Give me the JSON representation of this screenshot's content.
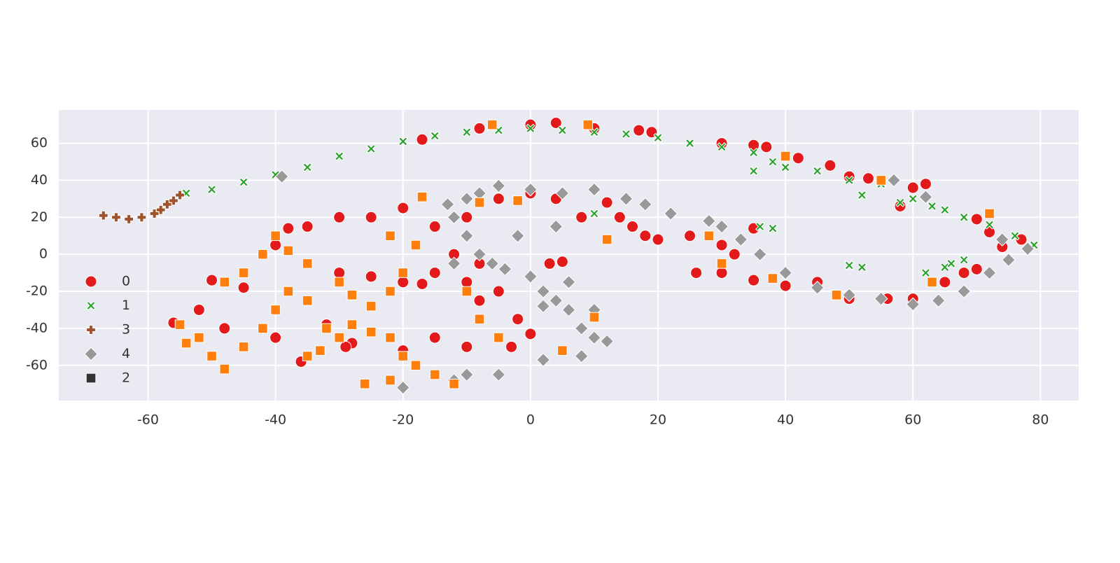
{
  "chart_data": {
    "type": "scatter",
    "xlim": [
      -74,
      86
    ],
    "ylim": [
      -79,
      78
    ],
    "xticks": [
      -60,
      -40,
      -20,
      0,
      20,
      40,
      60,
      80
    ],
    "yticks": [
      -60,
      -40,
      -20,
      0,
      20,
      40,
      60
    ],
    "grid": true,
    "legend": "center left",
    "series": [
      {
        "name": "0",
        "color": "#e31a1c",
        "marker": "circle",
        "x": [
          -17,
          -8,
          0,
          4,
          10,
          17,
          19,
          30,
          35,
          37,
          42,
          47,
          50,
          53,
          58,
          60,
          62,
          70,
          72,
          74,
          77,
          70,
          68,
          65,
          60,
          56,
          50,
          45,
          40,
          35,
          30,
          26,
          25,
          30,
          32,
          35,
          20,
          16,
          12,
          14,
          18,
          8,
          4,
          0,
          -5,
          -10,
          -15,
          -20,
          -25,
          -30,
          -35,
          -38,
          -40,
          -30,
          -25,
          -20,
          -15,
          -12,
          -8,
          -5,
          -2,
          0,
          -3,
          -10,
          -15,
          -20,
          -28,
          -32,
          -40,
          -48,
          -52,
          -56,
          -50,
          -45,
          -36,
          -29,
          -8,
          -10,
          3,
          5,
          -17
        ],
        "y": [
          62,
          68,
          70,
          71,
          68,
          67,
          66,
          60,
          59,
          58,
          52,
          48,
          42,
          41,
          26,
          36,
          38,
          19,
          12,
          4,
          8,
          -8,
          -10,
          -15,
          -24,
          -24,
          -24,
          -15,
          -17,
          -14,
          -10,
          -10,
          10,
          5,
          0,
          14,
          8,
          15,
          28,
          20,
          10,
          20,
          30,
          33,
          30,
          20,
          15,
          25,
          20,
          20,
          15,
          14,
          5,
          -10,
          -12,
          -15,
          -10,
          0,
          -5,
          -20,
          -35,
          -43,
          -50,
          -50,
          -45,
          -52,
          -48,
          -38,
          -45,
          -40,
          -30,
          -37,
          -14,
          -18,
          -58,
          -50,
          -25,
          -15,
          -5,
          -4,
          -16
        ]
      },
      {
        "name": "1",
        "color": "#2ca02c",
        "marker": "x",
        "x": [
          -54,
          -50,
          -45,
          -40,
          -35,
          -30,
          -25,
          -20,
          -15,
          -10,
          -5,
          0,
          5,
          10,
          15,
          20,
          25,
          30,
          35,
          38,
          40,
          45,
          50,
          52,
          55,
          58,
          60,
          63,
          65,
          68,
          72,
          76,
          79,
          50,
          52,
          62,
          65,
          66,
          68,
          10,
          36,
          38,
          35
        ],
        "y": [
          33,
          35,
          39,
          43,
          47,
          53,
          57,
          61,
          64,
          66,
          67,
          68,
          67,
          66,
          65,
          63,
          60,
          58,
          55,
          50,
          47,
          45,
          40,
          32,
          38,
          28,
          30,
          26,
          24,
          20,
          16,
          10,
          5,
          -6,
          -7,
          -10,
          -7,
          -5,
          -3,
          22,
          15,
          14,
          45
        ]
      },
      {
        "name": "3",
        "color": "#a0522d",
        "marker": "plus",
        "x": [
          -67,
          -65,
          -63,
          -61,
          -59,
          -58,
          -57,
          -56,
          -55
        ],
        "y": [
          21,
          20,
          19,
          20,
          22,
          24,
          27,
          29,
          32
        ]
      },
      {
        "name": "4",
        "color": "#999999",
        "marker": "diamond",
        "x": [
          -13,
          -10,
          -8,
          -5,
          0,
          5,
          10,
          15,
          18,
          22,
          -12,
          -10,
          -8,
          -6,
          -4,
          0,
          2,
          4,
          6,
          8,
          10,
          12,
          8,
          2,
          -5,
          -10,
          -12,
          -20,
          -12,
          -2,
          4,
          6,
          28,
          30,
          33,
          36,
          40,
          45,
          50,
          55,
          60,
          64,
          68,
          72,
          75,
          74,
          78,
          57,
          62,
          -39,
          2,
          10
        ],
        "y": [
          27,
          30,
          33,
          37,
          35,
          33,
          35,
          30,
          27,
          22,
          20,
          10,
          0,
          -5,
          -8,
          -12,
          -20,
          -25,
          -30,
          -40,
          -45,
          -47,
          -55,
          -57,
          -65,
          -65,
          -68,
          -72,
          -5,
          10,
          15,
          -15,
          18,
          15,
          8,
          0,
          -10,
          -18,
          -22,
          -24,
          -27,
          -25,
          -20,
          -10,
          -3,
          8,
          3,
          40,
          31,
          42,
          -28,
          -30
        ]
      },
      {
        "name": "2",
        "color": "#ff7f0e",
        "legend_color": "#333333",
        "marker": "square",
        "x": [
          -55,
          -52,
          -50,
          -48,
          -45,
          -42,
          -40,
          -38,
          -35,
          -32,
          -30,
          -28,
          -25,
          -22,
          -20,
          -18,
          -15,
          -12,
          -22,
          -26,
          -45,
          -42,
          -40,
          -38,
          -35,
          -30,
          -28,
          -25,
          -22,
          -20,
          -18,
          -22,
          -17,
          -8,
          -2,
          -6,
          9,
          40,
          55,
          72,
          63,
          10,
          5,
          -5,
          -8,
          -10,
          -48,
          -54,
          -35,
          12,
          28,
          30,
          38,
          48,
          -33
        ],
        "y": [
          -38,
          -45,
          -55,
          -62,
          -50,
          -40,
          -30,
          -20,
          -25,
          -40,
          -45,
          -38,
          -42,
          -45,
          -55,
          -60,
          -65,
          -70,
          -68,
          -70,
          -10,
          0,
          10,
          2,
          -5,
          -15,
          -22,
          -28,
          -20,
          -10,
          5,
          10,
          31,
          28,
          29,
          70,
          70,
          53,
          40,
          22,
          -15,
          -34,
          -52,
          -45,
          -35,
          -20,
          -15,
          -48,
          -55,
          8,
          10,
          -5,
          -13,
          -22,
          -52
        ]
      }
    ]
  }
}
